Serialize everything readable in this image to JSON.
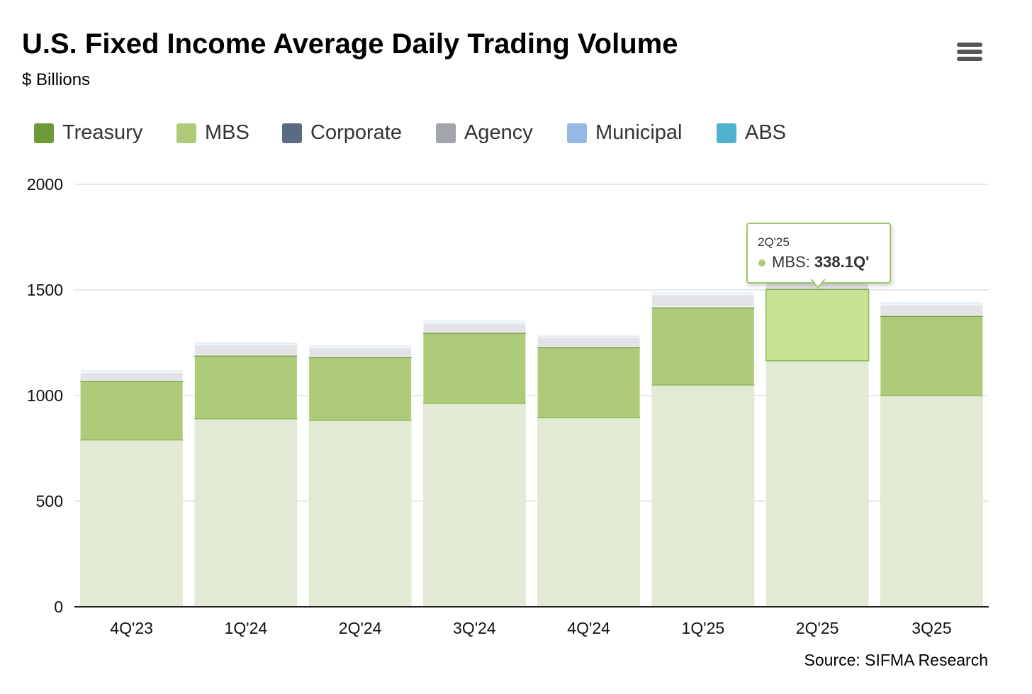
{
  "header": {
    "title": "U.S. Fixed Income Average Daily Trading Volume",
    "subtitle": "$ Billions"
  },
  "menu": {
    "icon": "hamburger-menu-icon"
  },
  "legend": [
    {
      "label": "Treasury",
      "color": "#6e9a3a"
    },
    {
      "label": "MBS",
      "color": "#aecb79"
    },
    {
      "label": "Corporate",
      "color": "#5b6b80"
    },
    {
      "label": "Agency",
      "color": "#a3a5ad"
    },
    {
      "label": "Municipal",
      "color": "#97b7e4"
    },
    {
      "label": "ABS",
      "color": "#4fb2cf"
    }
  ],
  "tooltip": {
    "category": "2Q'25",
    "series": "MBS",
    "value": "338.1Q'",
    "dot_color": "#aecb79",
    "border_color": "#9ec86a"
  },
  "source": "Source: SIFMA Research",
  "chart_data": {
    "type": "bar",
    "stacked": true,
    "title": "U.S. Fixed Income Average Daily Trading Volume",
    "subtitle": "$ Billions",
    "xlabel": "",
    "ylabel": "",
    "ylim": [
      0,
      2000
    ],
    "yticks": [
      0,
      500,
      1000,
      1500,
      2000
    ],
    "grid": true,
    "legend_position": "top-left",
    "categories": [
      "4Q'23",
      "1Q'24",
      "2Q'24",
      "3Q'24",
      "4Q'24",
      "1Q'25",
      "2Q'25",
      "3Q25"
    ],
    "series": [
      {
        "name": "Treasury",
        "color": "#e2ead6",
        "values": [
          790,
          890,
          883,
          963,
          895,
          1050,
          1165,
          1000
        ]
      },
      {
        "name": "MBS",
        "color": "#aecb79",
        "highlight_color": "#c8e295",
        "values": [
          278,
          297,
          297,
          332,
          332,
          365,
          338.1,
          375
        ]
      },
      {
        "name": "Corporate",
        "color": "#b8bac1",
        "values": [
          4,
          5,
          5,
          5,
          5,
          5,
          5,
          5
        ]
      },
      {
        "name": "Agency",
        "color": "#e3e3e7",
        "values": [
          38,
          50,
          42,
          42,
          44,
          58,
          58,
          50
        ]
      },
      {
        "name": "Municipal",
        "color": "#dde8f7",
        "values": [
          8,
          9,
          8,
          10,
          9,
          9,
          9,
          9
        ]
      },
      {
        "name": "ABS",
        "color": "#cfe7f1",
        "values": [
          5,
          5,
          5,
          5,
          5,
          5,
          5,
          5
        ]
      }
    ],
    "highlight": {
      "category_index": 6,
      "series": "MBS"
    }
  }
}
